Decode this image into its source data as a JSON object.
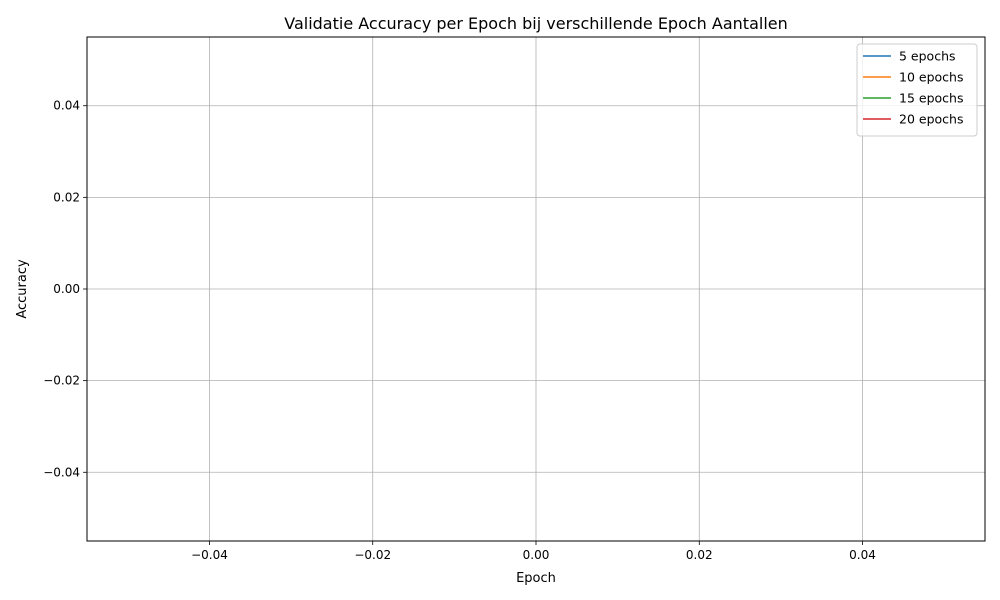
{
  "chart_data": {
    "type": "line",
    "title": "Validatie Accuracy per Epoch bij verschillende Epoch Aantallen",
    "xlabel": "Epoch",
    "ylabel": "Accuracy",
    "xlim": [
      -0.055,
      0.055
    ],
    "ylim": [
      -0.055,
      0.055
    ],
    "xticks": [
      -0.04,
      -0.02,
      0.0,
      0.02,
      0.04
    ],
    "yticks": [
      -0.04,
      -0.02,
      0.0,
      0.02,
      0.04
    ],
    "xtick_labels": [
      "−0.04",
      "−0.02",
      "0.00",
      "0.02",
      "0.04"
    ],
    "ytick_labels": [
      "−0.04",
      "−0.02",
      "0.00",
      "0.02",
      "0.04"
    ],
    "grid": true,
    "legend_position": "top-right",
    "series": [
      {
        "name": "5 epochs",
        "color": "#1f77b4",
        "x": [],
        "y": []
      },
      {
        "name": "10 epochs",
        "color": "#ff7f0e",
        "x": [],
        "y": []
      },
      {
        "name": "15 epochs",
        "color": "#2ca02c",
        "x": [],
        "y": []
      },
      {
        "name": "20 epochs",
        "color": "#d62728",
        "x": [],
        "y": []
      }
    ]
  }
}
